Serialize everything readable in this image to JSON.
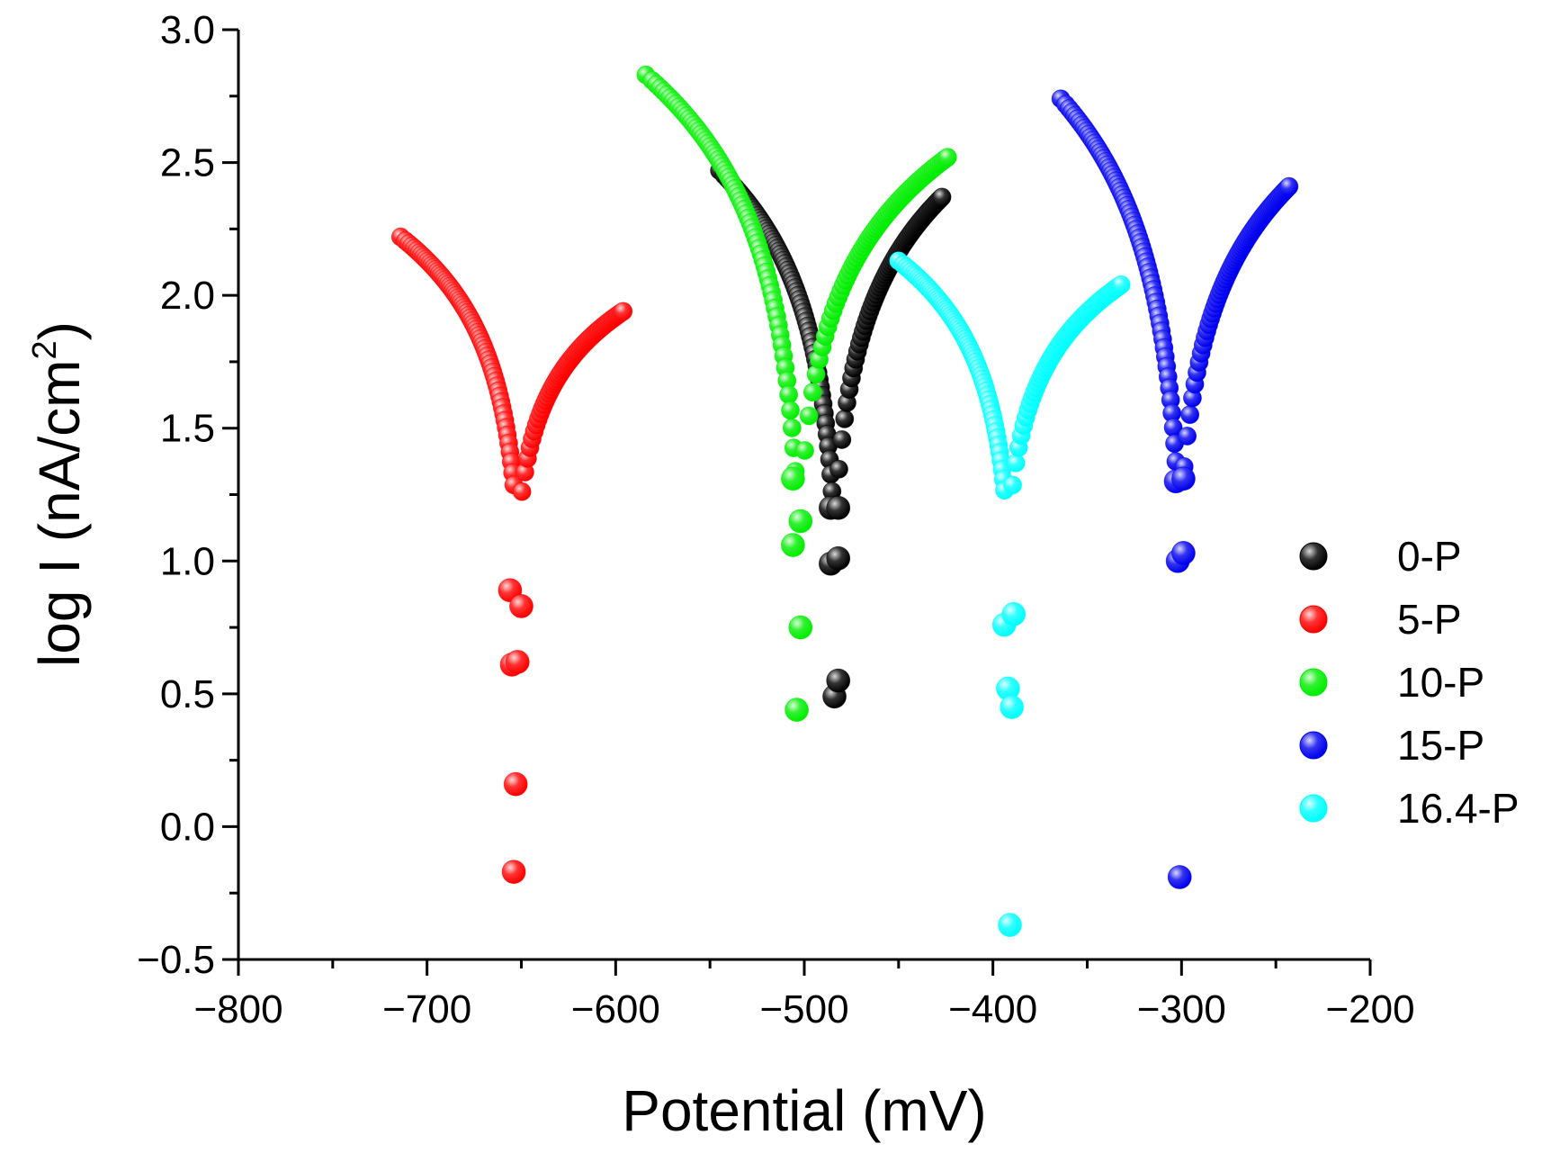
{
  "chart_data": {
    "type": "scatter",
    "xlabel": "Potential (mV)",
    "ylabel_main": "log I (nA/cm",
    "ylabel_sup": "2",
    "ylabel_close": ")",
    "xlim": [
      -800,
      -200
    ],
    "ylim": [
      -0.5,
      3.0
    ],
    "x_ticks": [
      -800,
      -700,
      -600,
      -500,
      -400,
      -300,
      -200
    ],
    "x_tick_labels": [
      "−800",
      "−700",
      "−600",
      "−500",
      "−400",
      "−300",
      "−200"
    ],
    "y_ticks": [
      -0.5,
      0.0,
      0.5,
      1.0,
      1.5,
      2.0,
      2.5,
      3.0
    ],
    "y_tick_labels": [
      "−0.5",
      "0.0",
      "0.5",
      "1.0",
      "1.5",
      "2.0",
      "2.5",
      "3.0"
    ],
    "legend_position": "right",
    "series": [
      {
        "name": "0-P",
        "color": "#000000",
        "ecorr": -484,
        "cathodic_start": [
          -545,
          2.47
        ],
        "anodic_end": [
          -427,
          2.37
        ],
        "tail_points": [
          [
            -486,
            1.2
          ],
          [
            -482,
            1.2
          ],
          [
            -486,
            0.99
          ],
          [
            -482,
            1.01
          ],
          [
            -484,
            0.49
          ],
          [
            -482,
            0.55
          ]
        ]
      },
      {
        "name": "5-P",
        "color": "#ff0000",
        "ecorr": -652,
        "cathodic_start": [
          -714,
          2.22
        ],
        "anodic_end": [
          -596,
          1.94
        ],
        "tail_points": [
          [
            -656,
            0.89
          ],
          [
            -650,
            0.83
          ],
          [
            -655,
            0.61
          ],
          [
            -652,
            0.62
          ],
          [
            -653,
            0.16
          ],
          [
            -654,
            -0.17
          ]
        ]
      },
      {
        "name": "10-P",
        "color": "#00ee00",
        "ecorr": -503,
        "cathodic_start": [
          -584,
          2.83
        ],
        "anodic_end": [
          -424,
          2.52
        ],
        "tail_points": [
          [
            -506,
            1.31
          ],
          [
            -502,
            1.15
          ],
          [
            -506,
            1.06
          ],
          [
            -502,
            0.75
          ],
          [
            -504,
            0.44
          ]
        ]
      },
      {
        "name": "15-P",
        "color": "#0000ee",
        "ecorr": -301,
        "cathodic_start": [
          -364,
          2.74
        ],
        "anodic_end": [
          -243,
          2.41
        ],
        "tail_points": [
          [
            -303,
            1.3
          ],
          [
            -299,
            1.31
          ],
          [
            -302,
            1.0
          ],
          [
            -299,
            1.03
          ],
          [
            -301,
            -0.19
          ]
        ]
      },
      {
        "name": "16.4-P",
        "color": "#00ffff",
        "ecorr": -392,
        "cathodic_start": [
          -450,
          2.13
        ],
        "anodic_end": [
          -332,
          2.04
        ],
        "tail_points": [
          [
            -394,
            0.76
          ],
          [
            -389,
            0.8
          ],
          [
            -392,
            0.52
          ],
          [
            -390,
            0.45
          ],
          [
            -391,
            -0.37
          ]
        ]
      }
    ]
  }
}
